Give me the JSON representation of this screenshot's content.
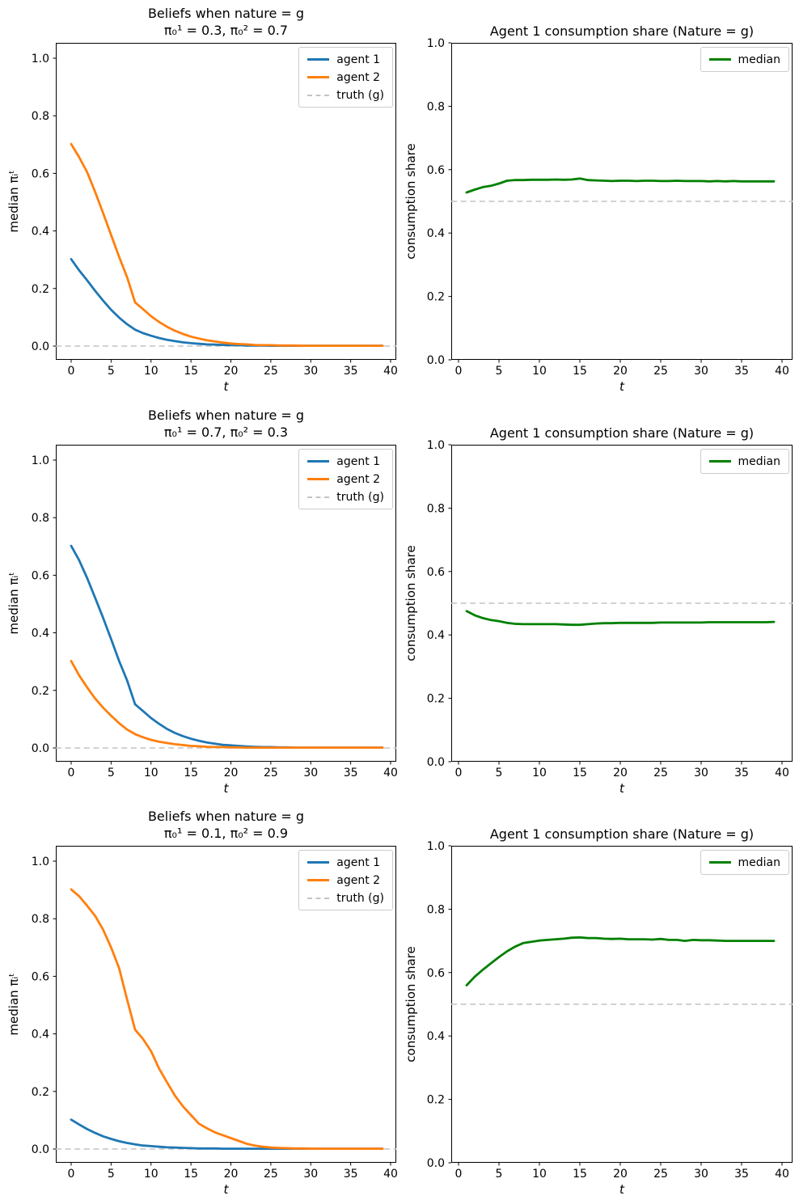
{
  "figure": {
    "background": "#ffffff",
    "text_color": "#000000",
    "truth_line_color": "#c4c4c4",
    "agent1_color": "#1f77b4",
    "agent2_color": "#ff7f0e",
    "median_color": "#008000"
  },
  "chart_data": [
    {
      "type": "line",
      "title": "Beliefs when nature = g",
      "subtitle": "π₀¹ = 0.3, π₀² = 0.7",
      "xlabel": "t",
      "ylabel": "median πᵢᵗ",
      "xlim": [
        -1.9,
        40.7
      ],
      "ylim": [
        -0.05,
        1.05
      ],
      "xticks": [
        0,
        5,
        10,
        15,
        20,
        25,
        30,
        35,
        40
      ],
      "yticks": [
        "0.0",
        "0.2",
        "0.4",
        "0.6",
        "0.8",
        "1.0"
      ],
      "grid": false,
      "legend_position": "upper right",
      "x": [
        0,
        1,
        2,
        3,
        4,
        5,
        6,
        7,
        8,
        9,
        10,
        11,
        12,
        13,
        14,
        15,
        16,
        17,
        18,
        19,
        20,
        21,
        22,
        23,
        24,
        25,
        26,
        27,
        28,
        29,
        30,
        31,
        32,
        33,
        34,
        35,
        36,
        37,
        38,
        39
      ],
      "series": [
        {
          "name": "agent 1",
          "color": "#1f77b4",
          "values": [
            0.302,
            0.263,
            0.228,
            0.192,
            0.158,
            0.126,
            0.099,
            0.076,
            0.057,
            0.045,
            0.036,
            0.028,
            0.022,
            0.017,
            0.013,
            0.01,
            0.008,
            0.006,
            0.005,
            0.004,
            0.003,
            0.003,
            0.002,
            0.002,
            0.002,
            0.001,
            0.001,
            0.001,
            0.001,
            0.001,
            0.001,
            0.001,
            0.001,
            0.001,
            0.001,
            0.001,
            0.001,
            0.001,
            0.001,
            0.001
          ]
        },
        {
          "name": "agent 2",
          "color": "#ff7f0e",
          "values": [
            0.702,
            0.656,
            0.604,
            0.536,
            0.462,
            0.386,
            0.31,
            0.24,
            0.152,
            0.128,
            0.104,
            0.084,
            0.067,
            0.053,
            0.042,
            0.033,
            0.026,
            0.02,
            0.016,
            0.012,
            0.009,
            0.007,
            0.006,
            0.004,
            0.003,
            0.003,
            0.002,
            0.002,
            0.002,
            0.001,
            0.001,
            0.001,
            0.001,
            0.001,
            0.001,
            0.001,
            0.001,
            0.001,
            0.001,
            0.001
          ]
        },
        {
          "name": "truth (g)",
          "color": "#c4c4c4",
          "dashed": true,
          "constant": 0.0
        }
      ]
    },
    {
      "type": "line",
      "title": "Agent 1 consumption share (Nature = g)",
      "xlabel": "t",
      "ylabel": "consumption share",
      "xlim": [
        -0.9,
        41.3
      ],
      "ylim": [
        0.0,
        1.0
      ],
      "xticks": [
        0,
        5,
        10,
        15,
        20,
        25,
        30,
        35,
        40
      ],
      "yticks": [
        "0.0",
        "0.2",
        "0.4",
        "0.6",
        "0.8",
        "1.0"
      ],
      "grid": false,
      "legend_position": "upper right",
      "x": [
        1,
        2,
        3,
        4,
        5,
        6,
        7,
        8,
        9,
        10,
        11,
        12,
        13,
        14,
        15,
        16,
        17,
        18,
        19,
        20,
        21,
        22,
        23,
        24,
        25,
        26,
        27,
        28,
        29,
        30,
        31,
        32,
        33,
        34,
        35,
        36,
        37,
        38,
        39
      ],
      "series": [
        {
          "name": "median",
          "color": "#008000",
          "values": [
            0.528,
            0.537,
            0.545,
            0.549,
            0.556,
            0.565,
            0.567,
            0.567,
            0.568,
            0.568,
            0.568,
            0.569,
            0.568,
            0.569,
            0.572,
            0.567,
            0.566,
            0.565,
            0.564,
            0.565,
            0.565,
            0.564,
            0.565,
            0.565,
            0.564,
            0.564,
            0.565,
            0.564,
            0.564,
            0.564,
            0.563,
            0.564,
            0.563,
            0.564,
            0.563,
            0.563,
            0.563,
            0.563,
            0.563
          ]
        },
        {
          "name": "",
          "color": "#c4c4c4",
          "dashed": true,
          "constant": 0.5
        }
      ]
    },
    {
      "type": "line",
      "title": "Beliefs when nature = g",
      "subtitle": "π₀¹ = 0.7, π₀² = 0.3",
      "xlabel": "t",
      "ylabel": "median πᵢᵗ",
      "xlim": [
        -1.9,
        40.7
      ],
      "ylim": [
        -0.05,
        1.05
      ],
      "xticks": [
        0,
        5,
        10,
        15,
        20,
        25,
        30,
        35,
        40
      ],
      "yticks": [
        "0.0",
        "0.2",
        "0.4",
        "0.6",
        "0.8",
        "1.0"
      ],
      "grid": false,
      "legend_position": "upper right",
      "x": [
        0,
        1,
        2,
        3,
        4,
        5,
        6,
        7,
        8,
        9,
        10,
        11,
        12,
        13,
        14,
        15,
        16,
        17,
        18,
        19,
        20,
        21,
        22,
        23,
        24,
        25,
        26,
        27,
        28,
        29,
        30,
        31,
        32,
        33,
        34,
        35,
        36,
        37,
        38,
        39
      ],
      "series": [
        {
          "name": "agent 1",
          "color": "#1f77b4",
          "values": [
            0.702,
            0.652,
            0.59,
            0.522,
            0.452,
            0.378,
            0.302,
            0.235,
            0.152,
            0.128,
            0.104,
            0.084,
            0.066,
            0.052,
            0.041,
            0.032,
            0.025,
            0.019,
            0.015,
            0.011,
            0.009,
            0.007,
            0.005,
            0.004,
            0.003,
            0.003,
            0.002,
            0.002,
            0.001,
            0.001,
            0.001,
            0.001,
            0.001,
            0.001,
            0.001,
            0.001,
            0.001,
            0.001,
            0.001,
            0.001
          ]
        },
        {
          "name": "agent 2",
          "color": "#ff7f0e",
          "values": [
            0.302,
            0.252,
            0.21,
            0.172,
            0.14,
            0.112,
            0.086,
            0.064,
            0.048,
            0.037,
            0.028,
            0.022,
            0.017,
            0.013,
            0.01,
            0.007,
            0.006,
            0.004,
            0.003,
            0.003,
            0.002,
            0.002,
            0.001,
            0.001,
            0.001,
            0.001,
            0.001,
            0.001,
            0.001,
            0.001,
            0.001,
            0.001,
            0.001,
            0.001,
            0.001,
            0.001,
            0.001,
            0.001,
            0.001,
            0.001
          ]
        },
        {
          "name": "truth (g)",
          "color": "#c4c4c4",
          "dashed": true,
          "constant": 0.0
        }
      ]
    },
    {
      "type": "line",
      "title": "Agent 1 consumption share (Nature = g)",
      "xlabel": "t",
      "ylabel": "consumption share",
      "xlim": [
        -0.9,
        41.3
      ],
      "ylim": [
        0.0,
        1.0
      ],
      "xticks": [
        0,
        5,
        10,
        15,
        20,
        25,
        30,
        35,
        40
      ],
      "yticks": [
        "0.0",
        "0.2",
        "0.4",
        "0.6",
        "0.8",
        "1.0"
      ],
      "grid": false,
      "legend_position": "upper right",
      "x": [
        1,
        2,
        3,
        4,
        5,
        6,
        7,
        8,
        9,
        10,
        11,
        12,
        13,
        14,
        15,
        16,
        17,
        18,
        19,
        20,
        21,
        22,
        23,
        24,
        25,
        26,
        27,
        28,
        29,
        30,
        31,
        32,
        33,
        34,
        35,
        36,
        37,
        38,
        39
      ],
      "series": [
        {
          "name": "median",
          "color": "#008000",
          "values": [
            0.475,
            0.462,
            0.453,
            0.447,
            0.443,
            0.438,
            0.435,
            0.434,
            0.434,
            0.434,
            0.434,
            0.434,
            0.433,
            0.432,
            0.432,
            0.434,
            0.436,
            0.437,
            0.437,
            0.438,
            0.438,
            0.438,
            0.438,
            0.438,
            0.439,
            0.439,
            0.439,
            0.439,
            0.439,
            0.439,
            0.44,
            0.44,
            0.44,
            0.44,
            0.44,
            0.44,
            0.44,
            0.44,
            0.441
          ]
        },
        {
          "name": "",
          "color": "#c4c4c4",
          "dashed": true,
          "constant": 0.5
        }
      ]
    },
    {
      "type": "line",
      "title": "Beliefs when nature = g",
      "subtitle": "π₀¹ = 0.1, π₀² = 0.9",
      "xlabel": "t",
      "ylabel": "median πᵢᵗ",
      "xlim": [
        -1.9,
        40.7
      ],
      "ylim": [
        -0.05,
        1.05
      ],
      "xticks": [
        0,
        5,
        10,
        15,
        20,
        25,
        30,
        35,
        40
      ],
      "yticks": [
        "0.0",
        "0.2",
        "0.4",
        "0.6",
        "0.8",
        "1.0"
      ],
      "grid": false,
      "legend_position": "upper right",
      "x": [
        0,
        1,
        2,
        3,
        4,
        5,
        6,
        7,
        8,
        9,
        10,
        11,
        12,
        13,
        14,
        15,
        16,
        17,
        18,
        19,
        20,
        21,
        22,
        23,
        24,
        25,
        26,
        27,
        28,
        29,
        30,
        31,
        32,
        33,
        34,
        35,
        36,
        37,
        38,
        39
      ],
      "series": [
        {
          "name": "agent 1",
          "color": "#1f77b4",
          "values": [
            0.102,
            0.085,
            0.069,
            0.056,
            0.044,
            0.035,
            0.027,
            0.021,
            0.016,
            0.012,
            0.01,
            0.008,
            0.006,
            0.005,
            0.004,
            0.003,
            0.002,
            0.002,
            0.002,
            0.001,
            0.001,
            0.001,
            0.001,
            0.001,
            0.001,
            0.001,
            0.001,
            0.001,
            0.001,
            0.001,
            0.001,
            0.001,
            0.001,
            0.001,
            0.001,
            0.001,
            0.001,
            0.001,
            0.001,
            0.001
          ]
        },
        {
          "name": "agent 2",
          "color": "#ff7f0e",
          "values": [
            0.902,
            0.878,
            0.845,
            0.81,
            0.762,
            0.7,
            0.628,
            0.52,
            0.415,
            0.382,
            0.34,
            0.28,
            0.232,
            0.185,
            0.148,
            0.118,
            0.088,
            0.072,
            0.058,
            0.048,
            0.038,
            0.028,
            0.018,
            0.012,
            0.008,
            0.005,
            0.004,
            0.003,
            0.002,
            0.002,
            0.001,
            0.001,
            0.001,
            0.001,
            0.001,
            0.001,
            0.001,
            0.001,
            0.001,
            0.001
          ]
        },
        {
          "name": "truth (g)",
          "color": "#c4c4c4",
          "dashed": true,
          "constant": 0.0
        }
      ]
    },
    {
      "type": "line",
      "title": "Agent 1 consumption share (Nature = g)",
      "xlabel": "t",
      "ylabel": "consumption share",
      "xlim": [
        -0.9,
        41.3
      ],
      "ylim": [
        0.0,
        1.0
      ],
      "xticks": [
        0,
        5,
        10,
        15,
        20,
        25,
        30,
        35,
        40
      ],
      "yticks": [
        "0.0",
        "0.2",
        "0.4",
        "0.6",
        "0.8",
        "1.0"
      ],
      "grid": false,
      "legend_position": "upper right",
      "x": [
        1,
        2,
        3,
        4,
        5,
        6,
        7,
        8,
        9,
        10,
        11,
        12,
        13,
        14,
        15,
        16,
        17,
        18,
        19,
        20,
        21,
        22,
        23,
        24,
        25,
        26,
        27,
        28,
        29,
        30,
        31,
        32,
        33,
        34,
        35,
        36,
        37,
        38,
        39
      ],
      "series": [
        {
          "name": "median",
          "color": "#008000",
          "values": [
            0.56,
            0.587,
            0.609,
            0.629,
            0.649,
            0.667,
            0.682,
            0.693,
            0.697,
            0.701,
            0.703,
            0.705,
            0.707,
            0.71,
            0.711,
            0.709,
            0.709,
            0.707,
            0.706,
            0.707,
            0.705,
            0.705,
            0.705,
            0.704,
            0.706,
            0.703,
            0.703,
            0.7,
            0.703,
            0.702,
            0.702,
            0.701,
            0.7,
            0.7,
            0.7,
            0.7,
            0.7,
            0.7,
            0.7
          ]
        },
        {
          "name": "",
          "color": "#c4c4c4",
          "dashed": true,
          "constant": 0.5
        }
      ]
    }
  ]
}
